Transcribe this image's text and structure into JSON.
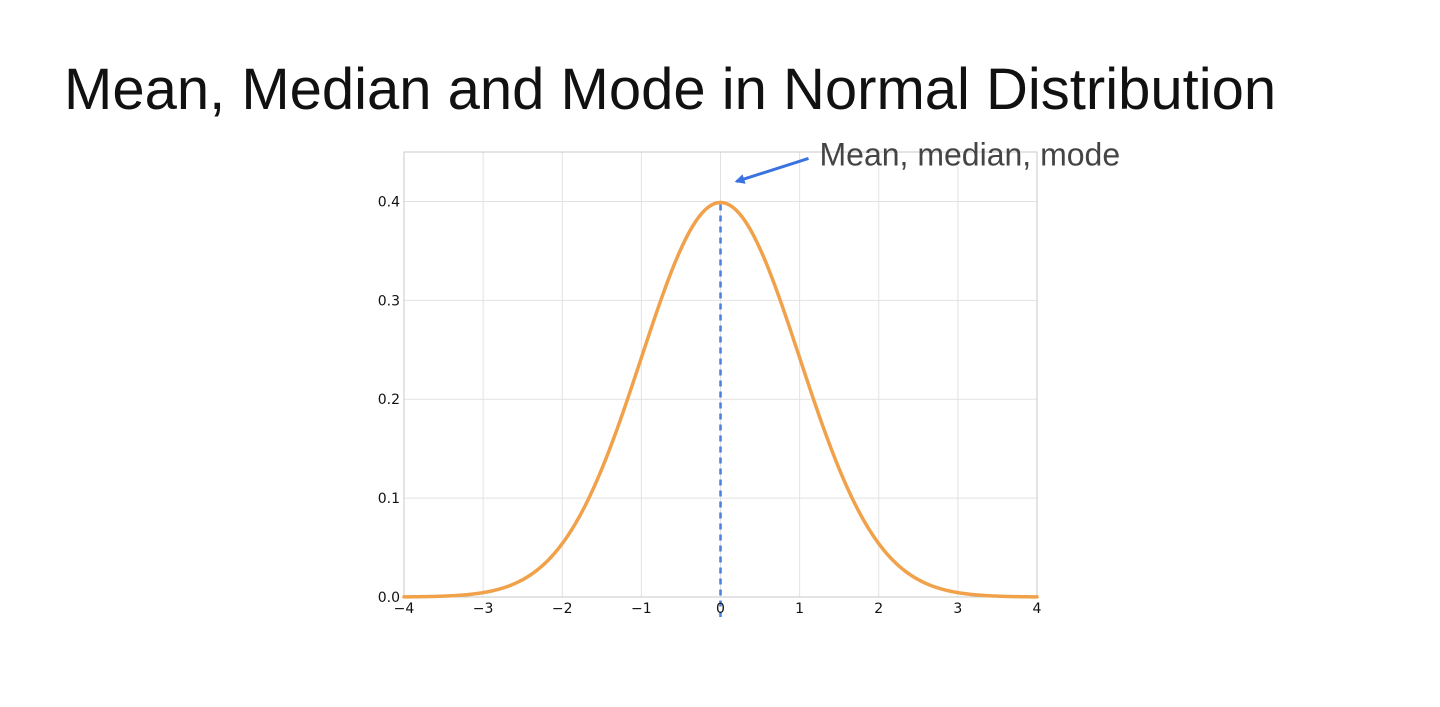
{
  "slide": {
    "title": "Mean, Median and Mode in Normal Distribution"
  },
  "chart_data": {
    "type": "line",
    "title": "",
    "xlabel": "",
    "ylabel": "",
    "xlim": [
      -4,
      4
    ],
    "ylim": [
      0.0,
      0.45
    ],
    "grid": true,
    "x_ticks": [
      "−4",
      "−3",
      "−2",
      "−1",
      "0",
      "1",
      "2",
      "3",
      "4"
    ],
    "x_tick_values": [
      -4,
      -3,
      -2,
      -1,
      0,
      1,
      2,
      3,
      4
    ],
    "y_ticks": [
      "0.0",
      "0.1",
      "0.2",
      "0.3",
      "0.4"
    ],
    "y_tick_values": [
      0.0,
      0.1,
      0.2,
      0.3,
      0.4
    ],
    "series": [
      {
        "color": "#f0a14a",
        "x": [
          -4,
          -3.5,
          -3,
          -2.5,
          -2,
          -1.5,
          -1,
          -0.5,
          0,
          0.5,
          1,
          1.5,
          2,
          2.5,
          3,
          3.5,
          4
        ],
        "values": [
          0.0001,
          0.0009,
          0.0044,
          0.0175,
          0.054,
          0.1295,
          0.242,
          0.3521,
          0.3989,
          0.3521,
          0.242,
          0.1295,
          0.054,
          0.0175,
          0.0044,
          0.0009,
          0.0001
        ]
      }
    ],
    "reference_line": {
      "x": 0,
      "style": "dashed",
      "color": "#4a7fe0"
    },
    "annotation": {
      "text": "Mean, median, mode",
      "points_to_x": 0,
      "points_to_y": 0.4,
      "arrow_color": "#3a72df"
    }
  }
}
